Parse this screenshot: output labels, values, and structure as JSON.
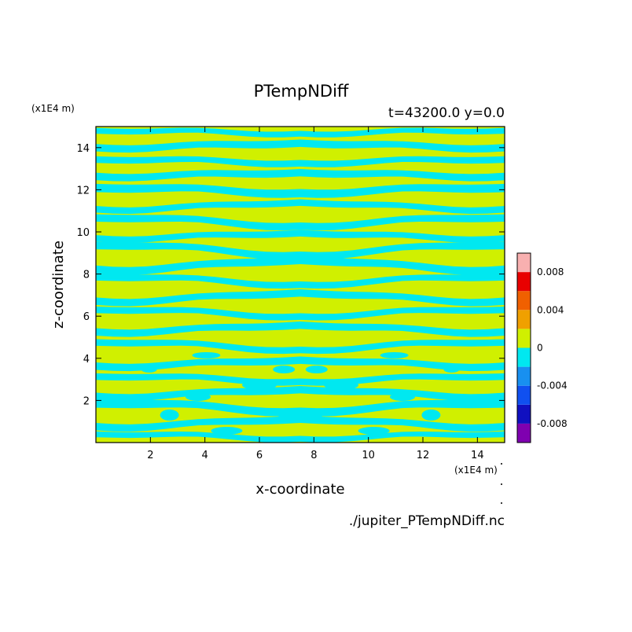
{
  "chart_data": {
    "type": "heatmap",
    "title": "PTempNDiff",
    "subtitle": "t=43200.0 y=0.0",
    "xlabel": "x-coordinate",
    "ylabel": "z-coordinate",
    "x_unit": "(x1E4 m)",
    "y_unit": "(x1E4 m)",
    "footer": "./jupiter_PTempNDiff.nc",
    "xlim": [
      0,
      15
    ],
    "ylim": [
      0,
      15
    ],
    "xticks": [
      "2",
      "4",
      "6",
      "8",
      "10",
      "12",
      "14"
    ],
    "yticks": [
      "2",
      "4",
      "6",
      "8",
      "10",
      "12",
      "14"
    ],
    "pattern": "alternating near-horizontal bands of slightly negative (cyan) and near-zero (yellow) values, mirror-symmetric about x=7.5, more irregular below z=4",
    "colorbar": {
      "levels": [
        -0.01,
        -0.008,
        -0.006,
        -0.004,
        -0.002,
        0,
        0.002,
        0.004,
        0.006,
        0.008,
        0.01
      ],
      "colors": [
        "#7f00b0",
        "#1010c0",
        "#1050f0",
        "#1890f0",
        "#00e8f0",
        "#d0f000",
        "#f0a000",
        "#f06000",
        "#e80000",
        "#f8b0b0"
      ],
      "tick_labels": [
        "0.008",
        "0.004",
        "0",
        "-0.004",
        "-0.008"
      ]
    }
  }
}
